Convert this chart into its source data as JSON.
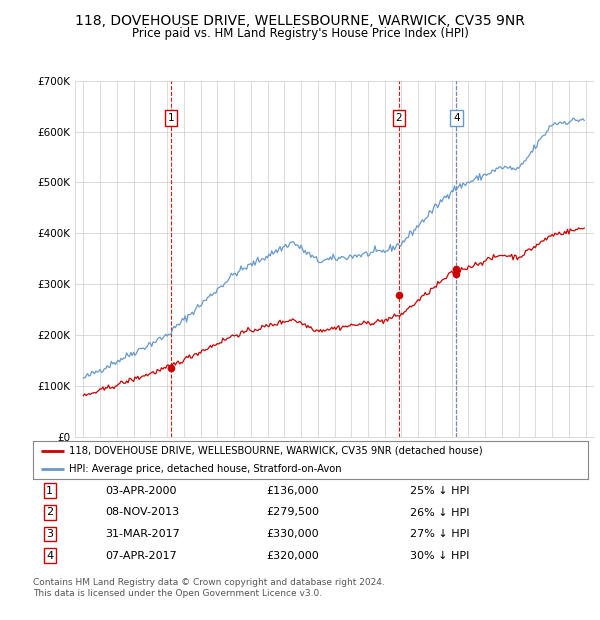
{
  "title": "118, DOVEHOUSE DRIVE, WELLESBOURNE, WARWICK, CV35 9NR",
  "subtitle": "Price paid vs. HM Land Registry's House Price Index (HPI)",
  "legend_line1": "118, DOVEHOUSE DRIVE, WELLESBOURNE, WARWICK, CV35 9NR (detached house)",
  "legend_line2": "HPI: Average price, detached house, Stratford-on-Avon",
  "footnote1": "Contains HM Land Registry data © Crown copyright and database right 2024.",
  "footnote2": "This data is licensed under the Open Government Licence v3.0.",
  "transactions": [
    {
      "num": 1,
      "date": "03-APR-2000",
      "price": "£136,000",
      "pct": "25% ↓ HPI",
      "year": 2000.25,
      "value": 136000
    },
    {
      "num": 2,
      "date": "08-NOV-2013",
      "price": "£279,500",
      "pct": "26% ↓ HPI",
      "year": 2013.85,
      "value": 279500
    },
    {
      "num": 3,
      "date": "31-MAR-2017",
      "price": "£330,000",
      "pct": "27% ↓ HPI",
      "year": 2017.25,
      "value": 330000
    },
    {
      "num": 4,
      "date": "07-APR-2017",
      "price": "£320,000",
      "pct": "30% ↓ HPI",
      "year": 2017.28,
      "value": 320000
    }
  ],
  "ylim": [
    0,
    700000
  ],
  "yticks": [
    0,
    100000,
    200000,
    300000,
    400000,
    500000,
    600000,
    700000
  ],
  "xlim_start": 1994.5,
  "xlim_end": 2025.5,
  "plot_bg_color": "#ffffff",
  "fig_bg_color": "#ffffff",
  "grid_color": "#cccccc",
  "red_line_color": "#cc0000",
  "blue_line_color": "#6699cc",
  "vline_nums_show": [
    1,
    2,
    4
  ],
  "vline_colors": {
    "1": "#cc0000",
    "2": "#cc0000",
    "3": "#cc0000",
    "4": "#6699cc"
  },
  "title_fontsize": 10,
  "subtitle_fontsize": 9
}
